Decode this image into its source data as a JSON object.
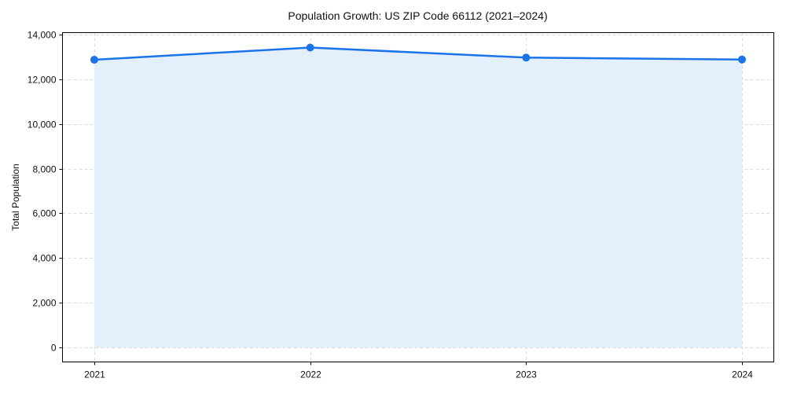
{
  "chart_data": {
    "type": "area",
    "title": "Population Growth: US ZIP Code 66112 (2021–2024)",
    "xlabel": "",
    "ylabel": "Total Population",
    "categories": [
      "2021",
      "2022",
      "2023",
      "2024"
    ],
    "series": [
      {
        "name": "Total Population",
        "values": [
          12875,
          13420,
          12970,
          12885
        ],
        "color": "#1a73e8",
        "fill": "#e3eefc"
      }
    ],
    "ylim": [
      -700,
      14000
    ],
    "yticks": [
      0,
      2000,
      4000,
      6000,
      8000,
      10000,
      12000,
      14000
    ],
    "ytick_labels": [
      "0",
      "2,000",
      "4,000",
      "6,000",
      "8,000",
      "10,000",
      "12,000",
      "14,000"
    ],
    "grid": true,
    "legend": null
  }
}
